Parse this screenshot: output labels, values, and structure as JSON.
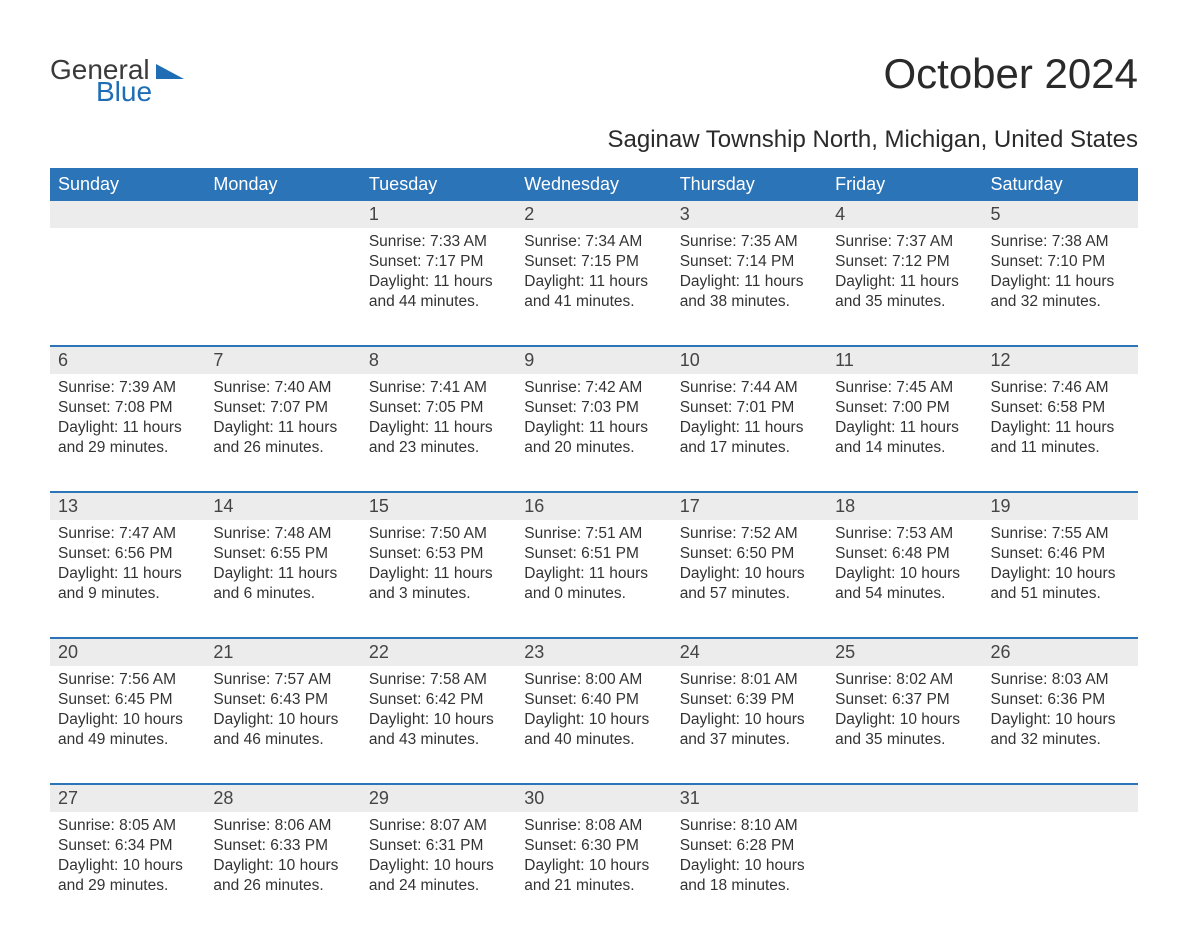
{
  "brand": {
    "part1": "General",
    "part2": "Blue",
    "color1": "#3a3a3a",
    "color2": "#1f6db5"
  },
  "title": "October 2024",
  "location": "Saginaw Township North, Michigan, United States",
  "header_bg": "#2c74b8",
  "header_fg": "#ffffff",
  "daynum_bg": "#ececec",
  "rule_color": "#2c74b8",
  "text_color": "#333333",
  "title_fontsize": 42,
  "location_fontsize": 24,
  "header_fontsize": 18,
  "cell_fontsize": 15.5,
  "day_headers": [
    "Sunday",
    "Monday",
    "Tuesday",
    "Wednesday",
    "Thursday",
    "Friday",
    "Saturday"
  ],
  "weeks": [
    [
      null,
      null,
      {
        "n": "1",
        "sr": "Sunrise: 7:33 AM",
        "ss": "Sunset: 7:17 PM",
        "d1": "Daylight: 11 hours",
        "d2": "and 44 minutes."
      },
      {
        "n": "2",
        "sr": "Sunrise: 7:34 AM",
        "ss": "Sunset: 7:15 PM",
        "d1": "Daylight: 11 hours",
        "d2": "and 41 minutes."
      },
      {
        "n": "3",
        "sr": "Sunrise: 7:35 AM",
        "ss": "Sunset: 7:14 PM",
        "d1": "Daylight: 11 hours",
        "d2": "and 38 minutes."
      },
      {
        "n": "4",
        "sr": "Sunrise: 7:37 AM",
        "ss": "Sunset: 7:12 PM",
        "d1": "Daylight: 11 hours",
        "d2": "and 35 minutes."
      },
      {
        "n": "5",
        "sr": "Sunrise: 7:38 AM",
        "ss": "Sunset: 7:10 PM",
        "d1": "Daylight: 11 hours",
        "d2": "and 32 minutes."
      }
    ],
    [
      {
        "n": "6",
        "sr": "Sunrise: 7:39 AM",
        "ss": "Sunset: 7:08 PM",
        "d1": "Daylight: 11 hours",
        "d2": "and 29 minutes."
      },
      {
        "n": "7",
        "sr": "Sunrise: 7:40 AM",
        "ss": "Sunset: 7:07 PM",
        "d1": "Daylight: 11 hours",
        "d2": "and 26 minutes."
      },
      {
        "n": "8",
        "sr": "Sunrise: 7:41 AM",
        "ss": "Sunset: 7:05 PM",
        "d1": "Daylight: 11 hours",
        "d2": "and 23 minutes."
      },
      {
        "n": "9",
        "sr": "Sunrise: 7:42 AM",
        "ss": "Sunset: 7:03 PM",
        "d1": "Daylight: 11 hours",
        "d2": "and 20 minutes."
      },
      {
        "n": "10",
        "sr": "Sunrise: 7:44 AM",
        "ss": "Sunset: 7:01 PM",
        "d1": "Daylight: 11 hours",
        "d2": "and 17 minutes."
      },
      {
        "n": "11",
        "sr": "Sunrise: 7:45 AM",
        "ss": "Sunset: 7:00 PM",
        "d1": "Daylight: 11 hours",
        "d2": "and 14 minutes."
      },
      {
        "n": "12",
        "sr": "Sunrise: 7:46 AM",
        "ss": "Sunset: 6:58 PM",
        "d1": "Daylight: 11 hours",
        "d2": "and 11 minutes."
      }
    ],
    [
      {
        "n": "13",
        "sr": "Sunrise: 7:47 AM",
        "ss": "Sunset: 6:56 PM",
        "d1": "Daylight: 11 hours",
        "d2": "and 9 minutes."
      },
      {
        "n": "14",
        "sr": "Sunrise: 7:48 AM",
        "ss": "Sunset: 6:55 PM",
        "d1": "Daylight: 11 hours",
        "d2": "and 6 minutes."
      },
      {
        "n": "15",
        "sr": "Sunrise: 7:50 AM",
        "ss": "Sunset: 6:53 PM",
        "d1": "Daylight: 11 hours",
        "d2": "and 3 minutes."
      },
      {
        "n": "16",
        "sr": "Sunrise: 7:51 AM",
        "ss": "Sunset: 6:51 PM",
        "d1": "Daylight: 11 hours",
        "d2": "and 0 minutes."
      },
      {
        "n": "17",
        "sr": "Sunrise: 7:52 AM",
        "ss": "Sunset: 6:50 PM",
        "d1": "Daylight: 10 hours",
        "d2": "and 57 minutes."
      },
      {
        "n": "18",
        "sr": "Sunrise: 7:53 AM",
        "ss": "Sunset: 6:48 PM",
        "d1": "Daylight: 10 hours",
        "d2": "and 54 minutes."
      },
      {
        "n": "19",
        "sr": "Sunrise: 7:55 AM",
        "ss": "Sunset: 6:46 PM",
        "d1": "Daylight: 10 hours",
        "d2": "and 51 minutes."
      }
    ],
    [
      {
        "n": "20",
        "sr": "Sunrise: 7:56 AM",
        "ss": "Sunset: 6:45 PM",
        "d1": "Daylight: 10 hours",
        "d2": "and 49 minutes."
      },
      {
        "n": "21",
        "sr": "Sunrise: 7:57 AM",
        "ss": "Sunset: 6:43 PM",
        "d1": "Daylight: 10 hours",
        "d2": "and 46 minutes."
      },
      {
        "n": "22",
        "sr": "Sunrise: 7:58 AM",
        "ss": "Sunset: 6:42 PM",
        "d1": "Daylight: 10 hours",
        "d2": "and 43 minutes."
      },
      {
        "n": "23",
        "sr": "Sunrise: 8:00 AM",
        "ss": "Sunset: 6:40 PM",
        "d1": "Daylight: 10 hours",
        "d2": "and 40 minutes."
      },
      {
        "n": "24",
        "sr": "Sunrise: 8:01 AM",
        "ss": "Sunset: 6:39 PM",
        "d1": "Daylight: 10 hours",
        "d2": "and 37 minutes."
      },
      {
        "n": "25",
        "sr": "Sunrise: 8:02 AM",
        "ss": "Sunset: 6:37 PM",
        "d1": "Daylight: 10 hours",
        "d2": "and 35 minutes."
      },
      {
        "n": "26",
        "sr": "Sunrise: 8:03 AM",
        "ss": "Sunset: 6:36 PM",
        "d1": "Daylight: 10 hours",
        "d2": "and 32 minutes."
      }
    ],
    [
      {
        "n": "27",
        "sr": "Sunrise: 8:05 AM",
        "ss": "Sunset: 6:34 PM",
        "d1": "Daylight: 10 hours",
        "d2": "and 29 minutes."
      },
      {
        "n": "28",
        "sr": "Sunrise: 8:06 AM",
        "ss": "Sunset: 6:33 PM",
        "d1": "Daylight: 10 hours",
        "d2": "and 26 minutes."
      },
      {
        "n": "29",
        "sr": "Sunrise: 8:07 AM",
        "ss": "Sunset: 6:31 PM",
        "d1": "Daylight: 10 hours",
        "d2": "and 24 minutes."
      },
      {
        "n": "30",
        "sr": "Sunrise: 8:08 AM",
        "ss": "Sunset: 6:30 PM",
        "d1": "Daylight: 10 hours",
        "d2": "and 21 minutes."
      },
      {
        "n": "31",
        "sr": "Sunrise: 8:10 AM",
        "ss": "Sunset: 6:28 PM",
        "d1": "Daylight: 10 hours",
        "d2": "and 18 minutes."
      },
      null,
      null
    ]
  ]
}
